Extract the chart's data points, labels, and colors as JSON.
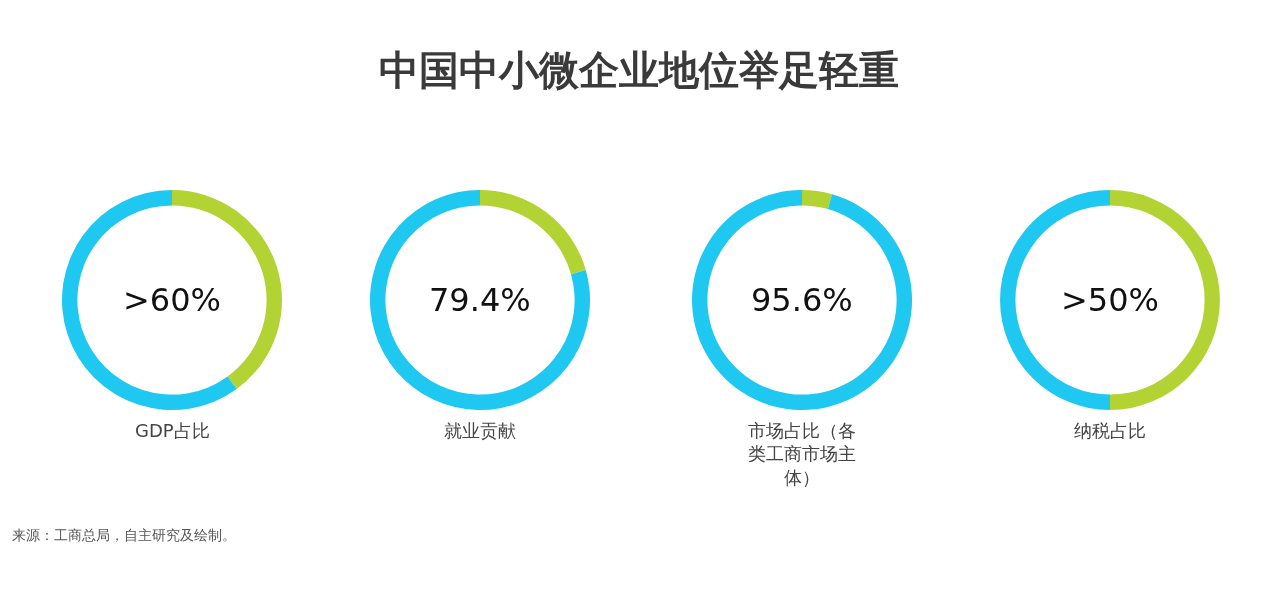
{
  "chart_data": [
    {
      "type": "other",
      "title": "中国中小微企业地位举足轻重",
      "annotations": [
        "来源：工商总局，自主研究及绘制。"
      ]
    },
    {
      "type": "donut",
      "title": "GDP占比",
      "categories": [
        null,
        null
      ],
      "values": [
        40,
        60
      ],
      "colors": [
        "#b3d334",
        "#1ec8f0"
      ],
      "annotations": [
        ">60%"
      ]
    },
    {
      "type": "donut",
      "title": "就业贡献",
      "categories": [
        null,
        null
      ],
      "values": [
        20.6,
        79.4
      ],
      "colors": [
        "#b3d334",
        "#1ec8f0"
      ],
      "annotations": [
        "79.4%"
      ]
    },
    {
      "type": "donut",
      "title": "市场占比（各类工商市场主体）",
      "categories": [
        null,
        null
      ],
      "values": [
        4.4,
        95.6
      ],
      "colors": [
        "#b3d334",
        "#1ec8f0"
      ],
      "annotations": [
        "95.6%"
      ]
    },
    {
      "type": "donut",
      "title": "纳税占比",
      "categories": [
        null,
        null
      ],
      "values": [
        50,
        50
      ],
      "colors": [
        "#b3d334",
        "#1ec8f0"
      ],
      "annotations": [
        ">50%"
      ]
    }
  ]
}
